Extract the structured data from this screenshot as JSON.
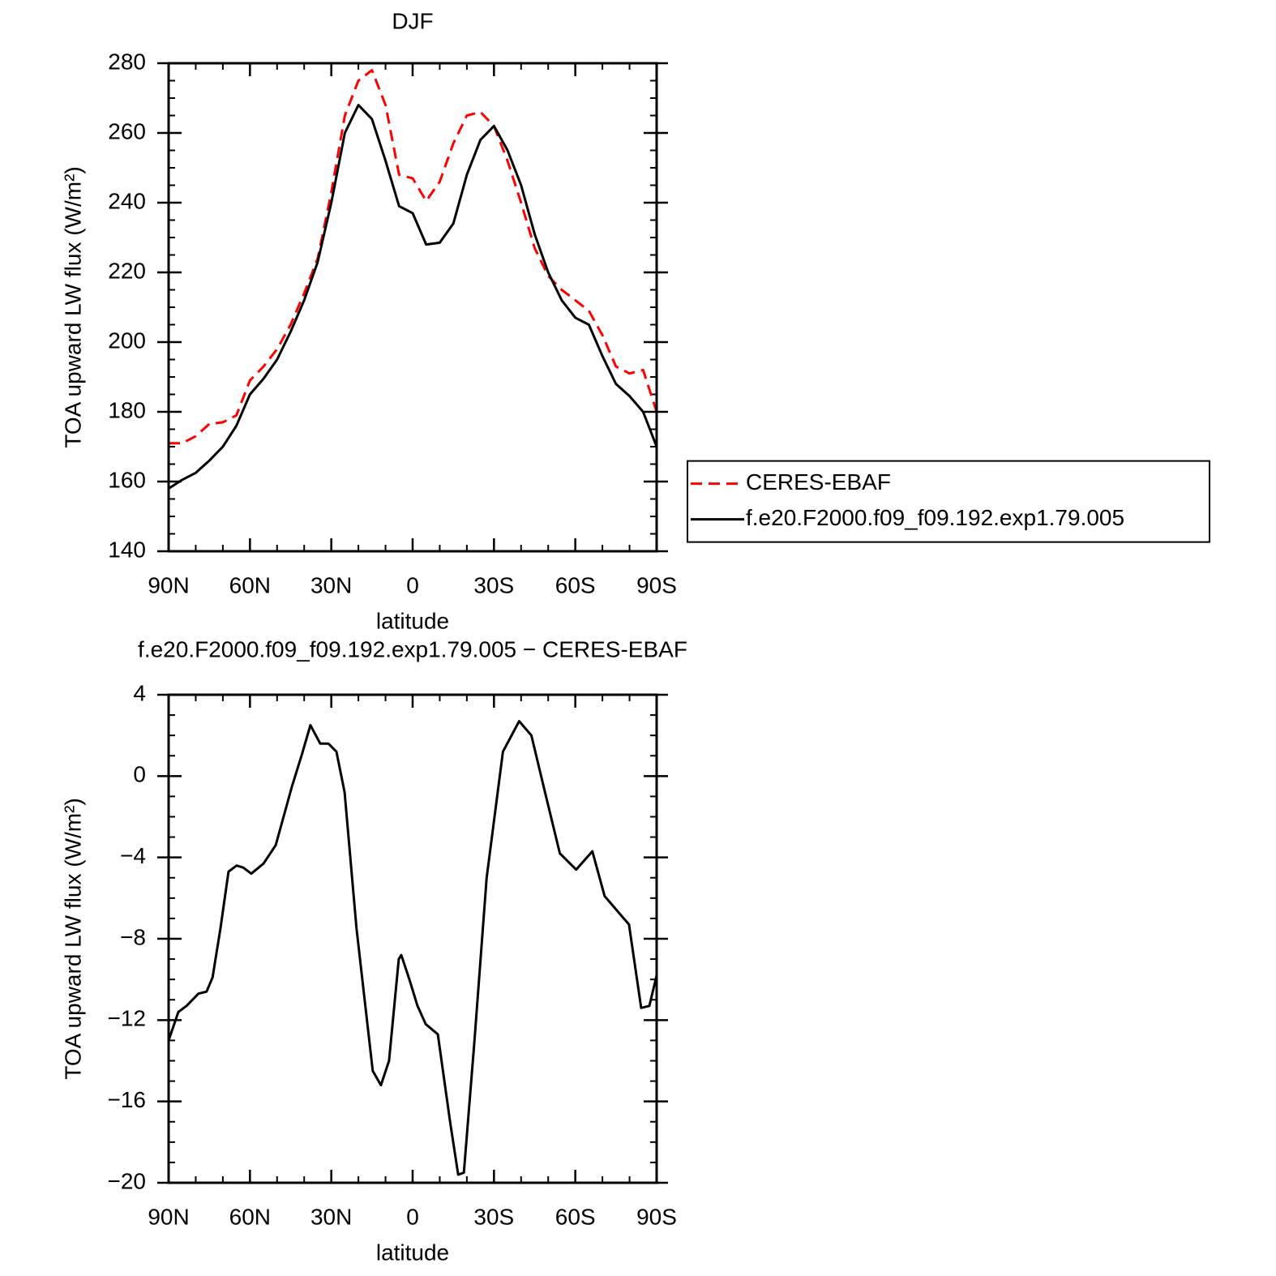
{
  "chart_data": [
    {
      "type": "line",
      "title": "DJF",
      "xlabel": "latitude",
      "ylabel": "TOA upward LW flux (W/m²)",
      "x": [
        90,
        85,
        80,
        75,
        70,
        65,
        60,
        55,
        50,
        45,
        40,
        35,
        30,
        25,
        20,
        15,
        10,
        5,
        0,
        -5,
        -10,
        -15,
        -20,
        -25,
        -30,
        -35,
        -40,
        -45,
        -50,
        -55,
        -60,
        -65,
        -70,
        -75,
        -80,
        -85,
        -90
      ],
      "series": [
        {
          "name": "CERES-EBAF",
          "color": "#ff0000",
          "linestyle": "dashed",
          "values": [
            171,
            171,
            173,
            176.5,
            177,
            179,
            189,
            193,
            198,
            205,
            214,
            224,
            243,
            265,
            275,
            278,
            268,
            248,
            247,
            240.5,
            246,
            257,
            265,
            266,
            262,
            252,
            240,
            227,
            219,
            215,
            212,
            209,
            202,
            193,
            191,
            192,
            180
          ]
        },
        {
          "name": "f.e20.F2000.f09_f09.192.exp1.79.005",
          "color": "#000000",
          "linestyle": "solid",
          "values": [
            158,
            160.5,
            162.5,
            166,
            170,
            176,
            185,
            189.5,
            195,
            203,
            212,
            223,
            240,
            260,
            268,
            264,
            252,
            239,
            237,
            228,
            228.5,
            234,
            248,
            258,
            262,
            255,
            245,
            231,
            220,
            212,
            207,
            205,
            196,
            188,
            184.5,
            180,
            170
          ]
        }
      ],
      "xlim": [
        90,
        -90
      ],
      "xticks": [
        {
          "value": 90,
          "label": "90N"
        },
        {
          "value": 60,
          "label": "60N"
        },
        {
          "value": 30,
          "label": "30N"
        },
        0,
        {
          "value": -30,
          "label": "30S"
        },
        {
          "value": -60,
          "label": "60S"
        },
        {
          "value": -90,
          "label": "90S"
        }
      ],
      "xminorticks": [
        80,
        70,
        50,
        40,
        20,
        10,
        -10,
        -20,
        -40,
        -50,
        -70,
        -80
      ],
      "ylim": [
        140,
        280
      ],
      "yticks": [
        140,
        160,
        180,
        200,
        220,
        240,
        260,
        280
      ],
      "yminorticks": [
        145,
        150,
        155,
        165,
        170,
        175,
        185,
        190,
        195,
        205,
        210,
        215,
        225,
        230,
        235,
        245,
        250,
        255,
        265,
        270,
        275
      ],
      "legend": "right"
    },
    {
      "type": "line",
      "title": "f.e20.F2000.f09_f09.192.exp1.79.005 − CERES-EBAF",
      "xlabel": "latitude",
      "ylabel": "TOA upward LW flux (W/m²)",
      "x": [
        90,
        86.4,
        83.4,
        79,
        76,
        73.8,
        70.9,
        67.9,
        64.9,
        62.5,
        59.5,
        55,
        50.5,
        44.5,
        41,
        37.7,
        34.1,
        31.1,
        28.1,
        25.1,
        20.7,
        14.7,
        11.7,
        8.7,
        5.1,
        4.2,
        1.2,
        -1.8,
        -4.8,
        -9.3,
        -13.8,
        -16.8,
        -18.9,
        -22.8,
        -27.3,
        -33.3,
        -39.3,
        -43.8,
        -48.3,
        -54.3,
        -60.3,
        -66.3,
        -70.8,
        -75.3,
        -79.8,
        -84.3,
        -87.3,
        -90
      ],
      "series": [
        {
          "name": "difference",
          "color": "#000000",
          "linestyle": "solid",
          "values": [
            -13,
            -11.6,
            -11.3,
            -10.7,
            -10.6,
            -9.9,
            -7.5,
            -4.7,
            -4.4,
            -4.5,
            -4.8,
            -4.3,
            -3.4,
            -0.5,
            1.0,
            2.5,
            1.6,
            1.6,
            1.2,
            -0.8,
            -7.5,
            -14.5,
            -15.2,
            -14,
            -9,
            -8.8,
            -10,
            -11.3,
            -12.2,
            -12.7,
            -17,
            -19.6,
            -19.5,
            -13,
            -5,
            1.2,
            2.7,
            2,
            -0.5,
            -3.8,
            -4.6,
            -3.7,
            -5.9,
            -6.6,
            -7.3,
            -11.4,
            -11.3,
            -9.8
          ]
        }
      ],
      "xlim": [
        90,
        -90
      ],
      "xticks": [
        {
          "value": 90,
          "label": "90N"
        },
        {
          "value": 60,
          "label": "60N"
        },
        {
          "value": 30,
          "label": "30N"
        },
        0,
        {
          "value": -30,
          "label": "30S"
        },
        {
          "value": -60,
          "label": "60S"
        },
        {
          "value": -90,
          "label": "90S"
        }
      ],
      "xminorticks": [
        80,
        70,
        50,
        40,
        20,
        10,
        -10,
        -20,
        -40,
        -50,
        -70,
        -80
      ],
      "ylim": [
        -20,
        4
      ],
      "yticks": [
        4,
        0,
        {
          "value": -4,
          "label": "−4"
        },
        {
          "value": -8,
          "label": "−8"
        },
        {
          "value": -12,
          "label": "−12"
        },
        {
          "value": -16,
          "label": "−16"
        },
        {
          "value": -20,
          "label": "−20"
        }
      ],
      "yminorticks": [
        3,
        2,
        1,
        -1,
        -2,
        -3,
        -5,
        -6,
        -7,
        -9,
        -10,
        -11,
        -13,
        -14,
        -15,
        -17,
        -18,
        -19
      ]
    }
  ]
}
